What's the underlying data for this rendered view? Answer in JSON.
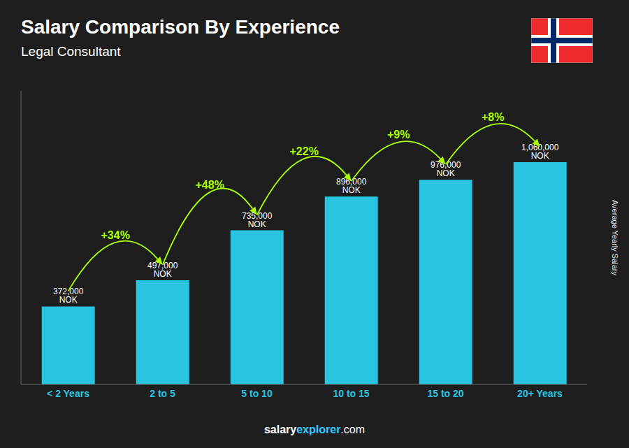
{
  "chart_data": {
    "type": "bar",
    "title": "Salary Comparison By Experience",
    "subtitle": "Legal Consultant",
    "ylabel": "Average Yearly Salary",
    "categories": [
      "< 2 Years",
      "2 to 5",
      "5 to 10",
      "10 to 15",
      "15 to 20",
      "20+ Years"
    ],
    "values": [
      372000,
      497000,
      735000,
      896000,
      976000,
      1060000
    ],
    "value_labels": [
      "372,000 NOK",
      "497,000 NOK",
      "735,000 NOK",
      "896,000 NOK",
      "976,000 NOK",
      "1,060,000 NOK"
    ],
    "color": "#29c4e0",
    "ylim": [
      0,
      1400000
    ],
    "grid": false,
    "data_labels": true,
    "tick_labels": "x",
    "annotations": [
      {
        "text": "+34%",
        "color": "#aaff00"
      },
      {
        "text": "+48%",
        "color": "#aaff00"
      },
      {
        "text": "+22%",
        "color": "#aaff00"
      },
      {
        "text": "+9%",
        "color": "#aaff00"
      },
      {
        "text": "+8%",
        "color": "#aaff00"
      },
      {
        "text": "salary",
        "color": "#ffffff"
      },
      {
        "text": "explorer",
        "color": "#33ccff"
      },
      {
        "text": ".com",
        "color": "#ffffff"
      }
    ]
  }
}
